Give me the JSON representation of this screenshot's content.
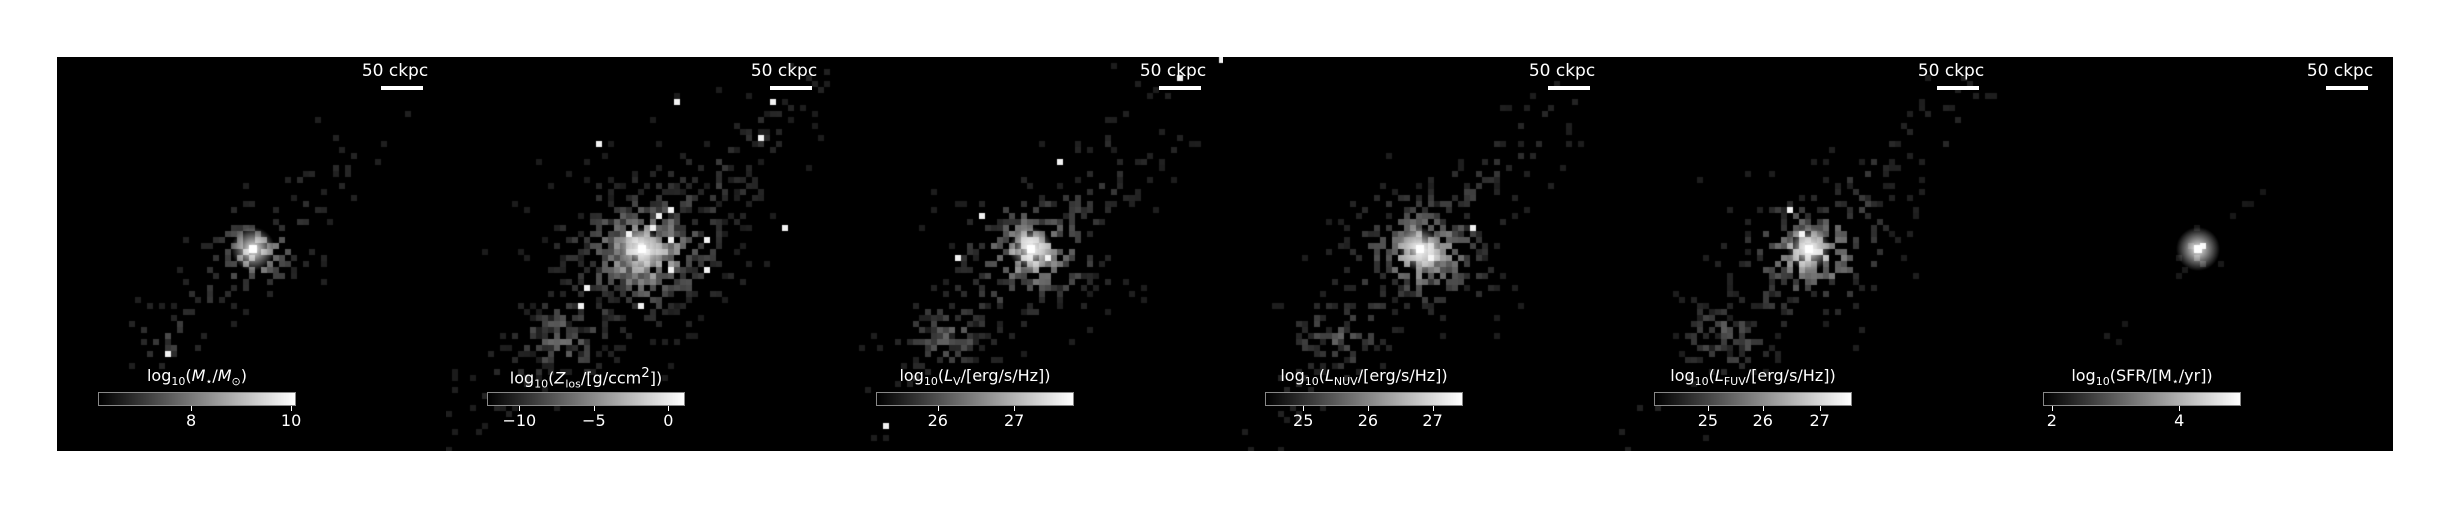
{
  "figure": {
    "background": "#000000",
    "panels": [
      {
        "id": "stellar-mass",
        "scale_label": "50 ckpc",
        "cbar_title_html": "log<sub>10</sub>(<i>M</i><sub>⋆</sub>/<i>M</i><sub>⊙</sub>)",
        "cbar_ticks": [
          {
            "label": "8",
            "frac": 0.47
          },
          {
            "label": "10",
            "frac": 0.98
          }
        ],
        "brightness": 0.8,
        "core": 1.0,
        "spread": 0.8,
        "density": 0.55
      },
      {
        "id": "metallicity",
        "scale_label": "50 ckpc",
        "cbar_title_html": "log<sub>10</sub>(<i>Z</i><sub>los</sub>/[g/ccm<sup>2</sup>])",
        "cbar_ticks": [
          {
            "label": "−10",
            "frac": 0.16
          },
          {
            "label": "−5",
            "frac": 0.54
          },
          {
            "label": "0",
            "frac": 0.92
          }
        ],
        "brightness": 0.7,
        "core": 1.0,
        "spread": 1.2,
        "density": 1.0
      },
      {
        "id": "luminosity-v",
        "scale_label": "50 ckpc",
        "cbar_title_html": "log<sub>10</sub>(<i>L</i><sub>V</sub>/[erg/s/Hz])",
        "cbar_ticks": [
          {
            "label": "26",
            "frac": 0.31
          },
          {
            "label": "27",
            "frac": 0.7
          }
        ],
        "brightness": 0.75,
        "core": 1.0,
        "spread": 1.05,
        "density": 0.85
      },
      {
        "id": "luminosity-nuv",
        "scale_label": "50 ckpc",
        "cbar_title_html": "log<sub>10</sub>(<i>L</i><sub>NUV</sub>/[erg/s/Hz])",
        "cbar_ticks": [
          {
            "label": "25",
            "frac": 0.19
          },
          {
            "label": "26",
            "frac": 0.52
          },
          {
            "label": "27",
            "frac": 0.85
          }
        ],
        "brightness": 0.75,
        "core": 1.0,
        "spread": 1.05,
        "density": 0.85
      },
      {
        "id": "luminosity-fuv",
        "scale_label": "50 ckpc",
        "cbar_title_html": "log<sub>10</sub>(<i>L</i><sub>FUV</sub>/[erg/s/Hz])",
        "cbar_ticks": [
          {
            "label": "25",
            "frac": 0.27
          },
          {
            "label": "26",
            "frac": 0.55
          },
          {
            "label": "27",
            "frac": 0.84
          }
        ],
        "brightness": 0.75,
        "core": 1.0,
        "spread": 1.05,
        "density": 0.85
      },
      {
        "id": "sfr",
        "scale_label": "50 ckpc",
        "cbar_title_html": "log<sub>10</sub>(SFR/[M<sub>⋆</sub>/yr])",
        "cbar_ticks": [
          {
            "label": "2",
            "frac": 0.04
          },
          {
            "label": "4",
            "frac": 0.69
          }
        ],
        "brightness": 0.6,
        "core": 1.0,
        "spread": 0.35,
        "density": 0.25
      }
    ]
  }
}
